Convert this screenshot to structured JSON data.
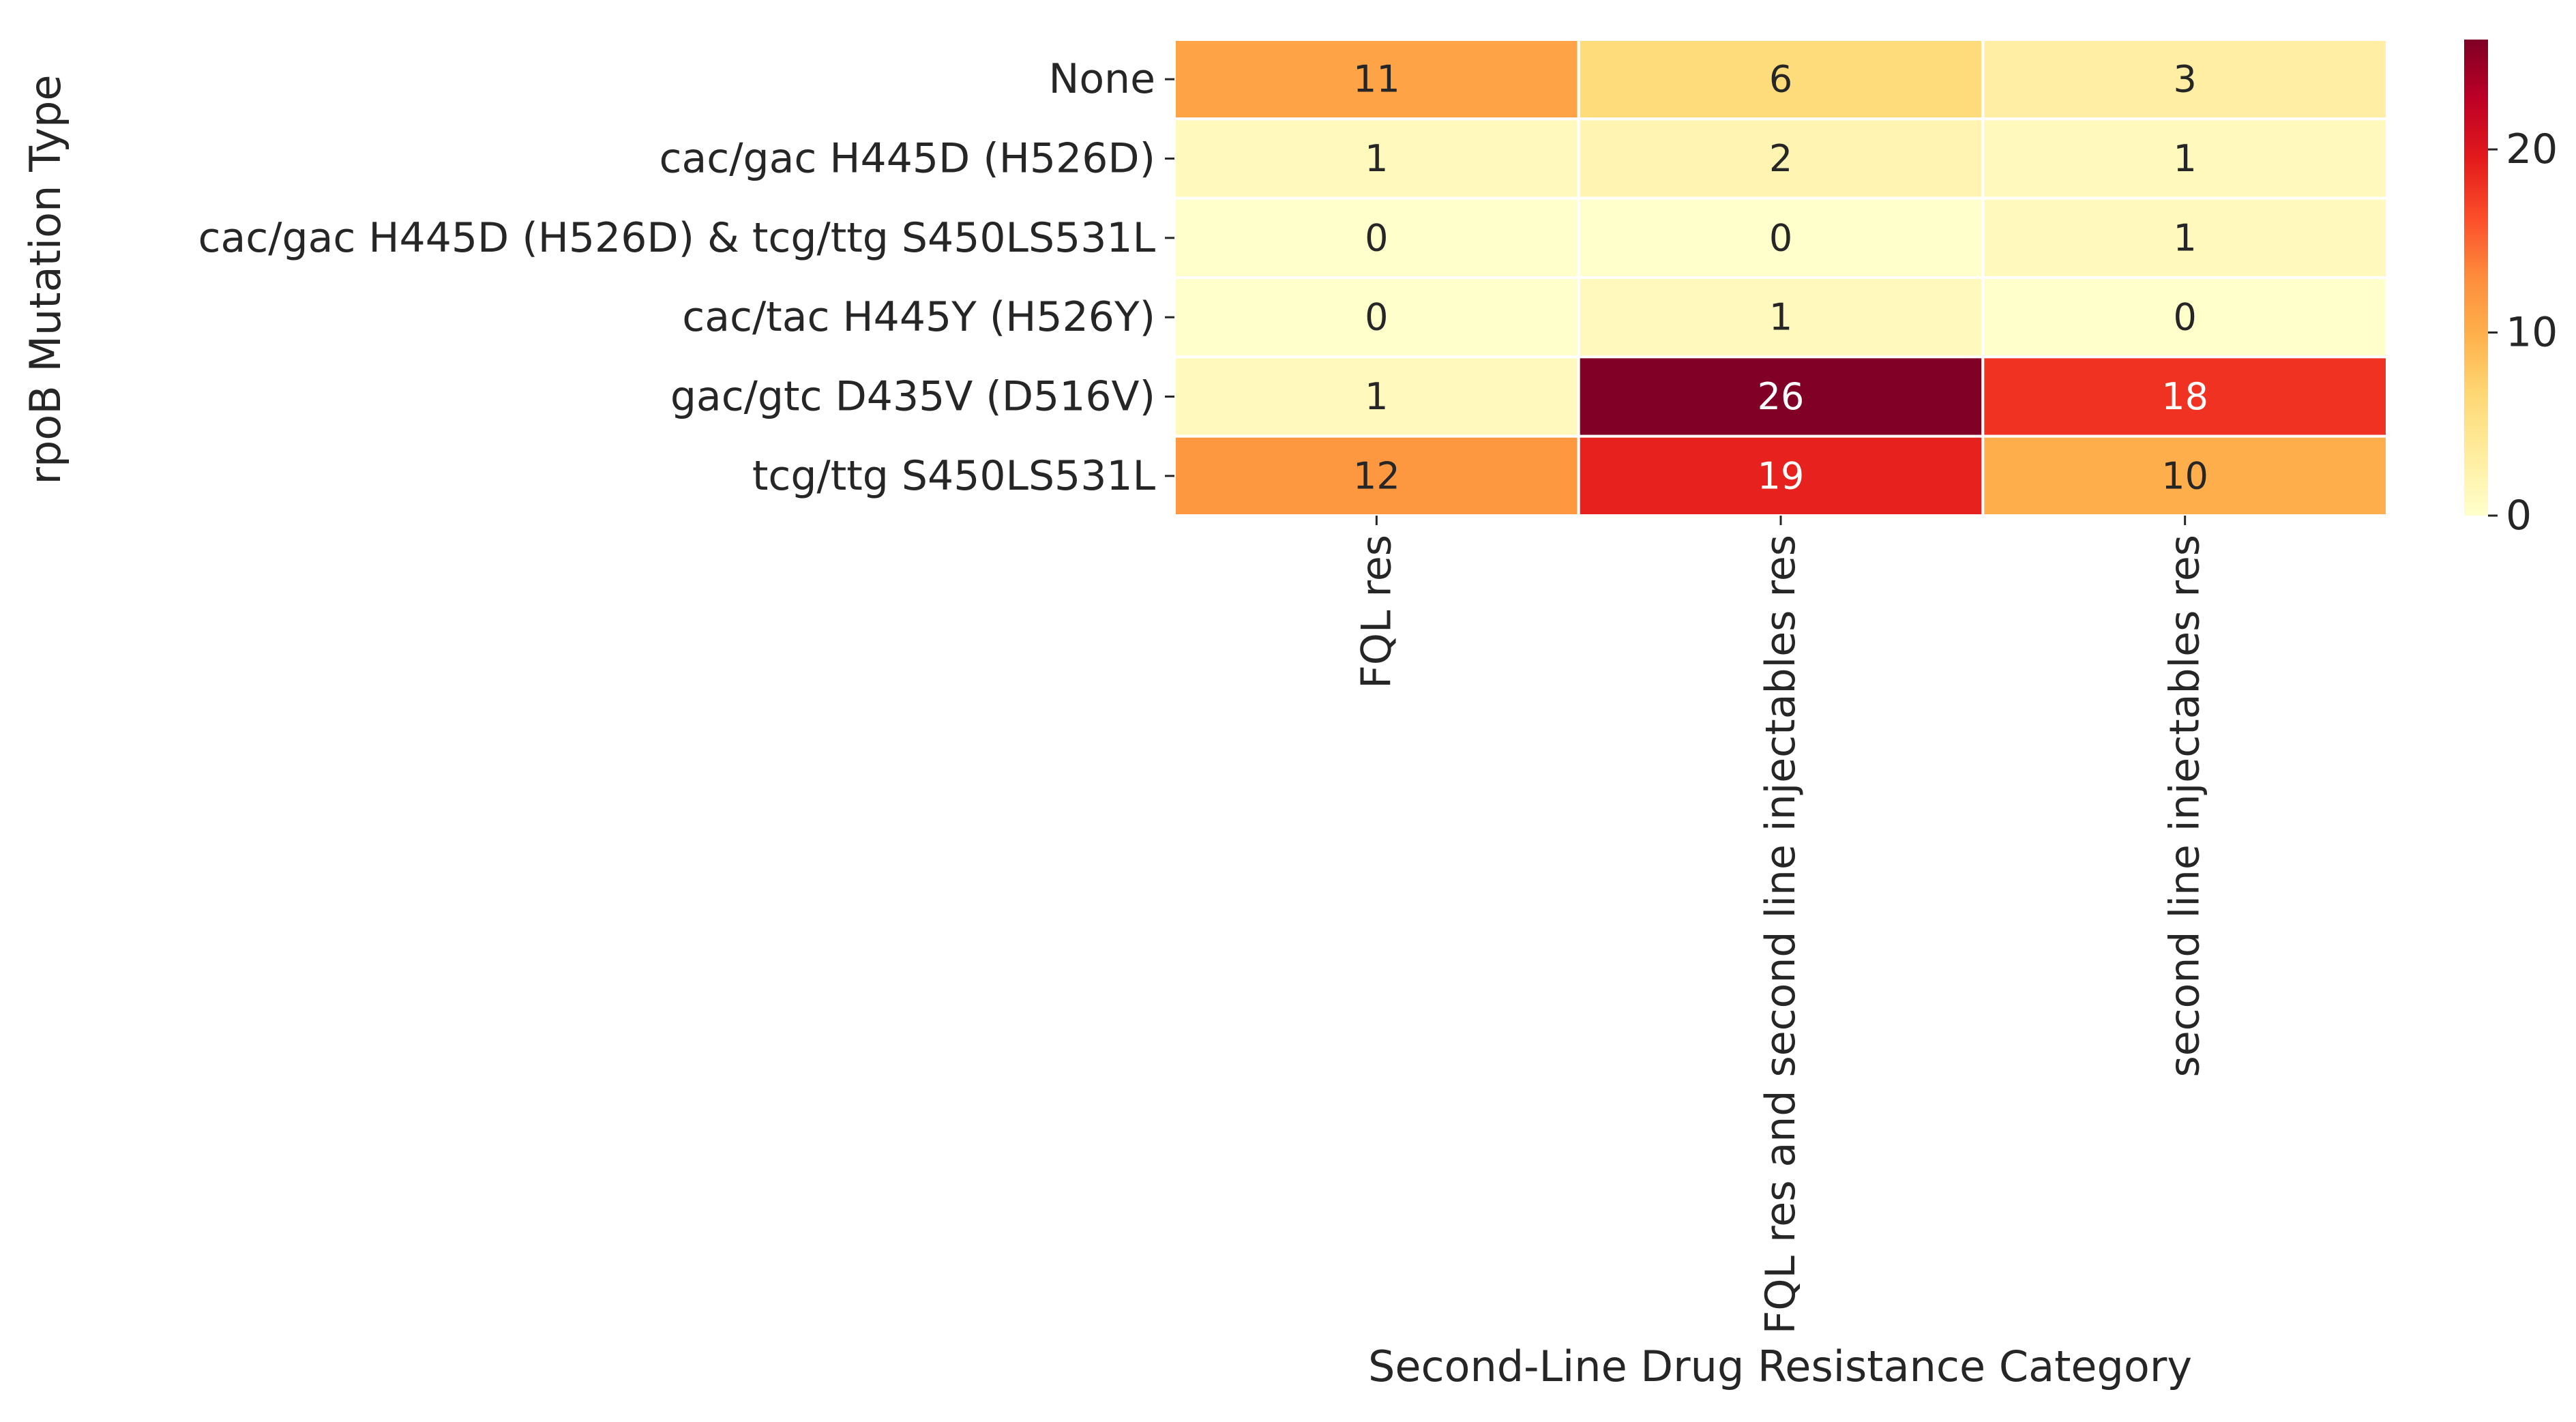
{
  "chart_data": {
    "type": "heatmap",
    "title": "",
    "xlabel": "Second-Line Drug Resistance Category",
    "ylabel": "rpoB Mutation Type",
    "rows": [
      "None",
      "cac/gac H445D (H526D)",
      "cac/gac H445D (H526D) & tcg/ttg S450LS531L",
      "cac/tac H445Y (H526Y)",
      "gac/gtc D435V (D516V)",
      "tcg/ttg S450LS531L"
    ],
    "columns": [
      "FQL res",
      "FQL res and second line injectables res",
      "second line injectables res"
    ],
    "values": [
      [
        11,
        6,
        3
      ],
      [
        1,
        2,
        1
      ],
      [
        0,
        0,
        1
      ],
      [
        0,
        1,
        0
      ],
      [
        1,
        26,
        18
      ],
      [
        12,
        19,
        10
      ]
    ],
    "colorbar": {
      "min": 0,
      "max": 26,
      "ticks": [
        0,
        10,
        20
      ],
      "colormap": "YlOrRd"
    },
    "annotations": true,
    "grid": false
  }
}
